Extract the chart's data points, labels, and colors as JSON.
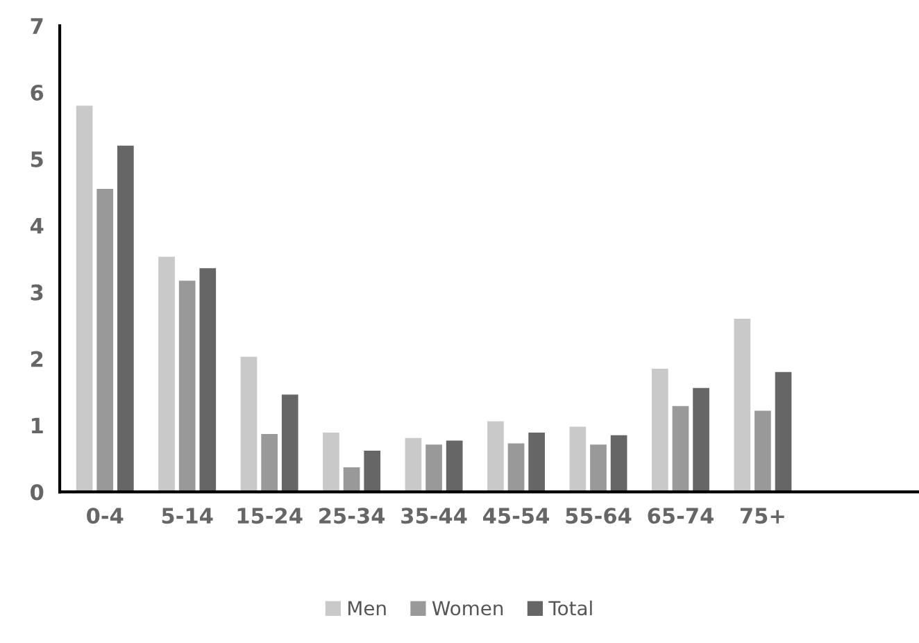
{
  "chart_data": {
    "type": "bar",
    "categories": [
      "0-4",
      "5-14",
      "15-24",
      "25-34",
      "35-44",
      "45-54",
      "55-64",
      "65-74",
      "75+"
    ],
    "series": [
      {
        "name": "Men",
        "color": "#c9c9c9",
        "values": [
          5.8,
          3.53,
          2.03,
          0.89,
          0.81,
          1.06,
          0.98,
          1.85,
          2.6
        ]
      },
      {
        "name": "Women",
        "color": "#999999",
        "values": [
          4.55,
          3.17,
          0.87,
          0.37,
          0.71,
          0.73,
          0.71,
          1.29,
          1.22
        ]
      },
      {
        "name": "Total",
        "color": "#666666",
        "values": [
          5.2,
          3.36,
          1.46,
          0.62,
          0.77,
          0.89,
          0.85,
          1.56,
          1.8
        ]
      }
    ],
    "ylim": [
      0,
      7
    ],
    "yticks": [
      0,
      1,
      2,
      3,
      4,
      5,
      6,
      7
    ],
    "grid": false,
    "legend": "bottom"
  }
}
